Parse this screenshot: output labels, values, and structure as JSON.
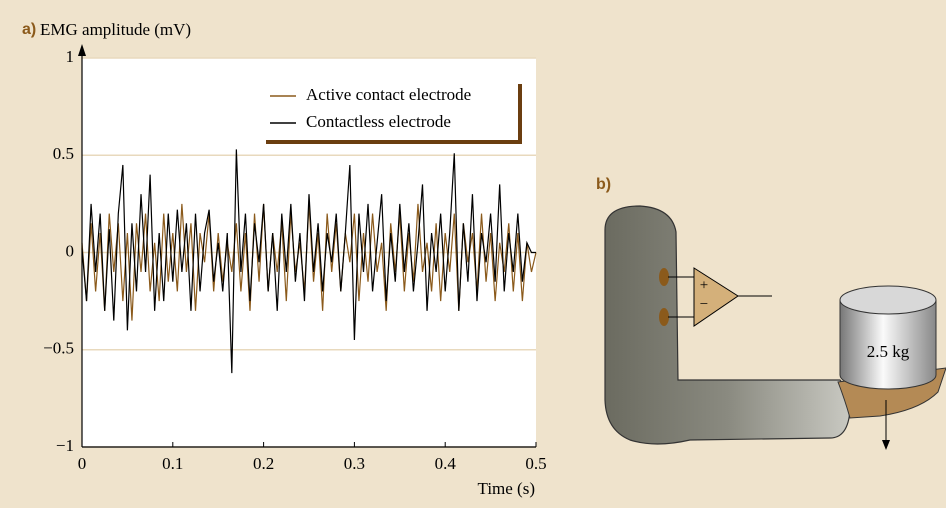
{
  "chart_data": {
    "type": "line",
    "panel_label": "a)",
    "ylabel": "EMG amplitude (mV)",
    "xlabel": "Time (s)",
    "x": [
      0,
      0.005,
      0.01,
      0.015,
      0.02,
      0.025,
      0.03,
      0.035,
      0.04,
      0.045,
      0.05,
      0.055,
      0.06,
      0.065,
      0.07,
      0.075,
      0.08,
      0.085,
      0.09,
      0.095,
      0.1,
      0.105,
      0.11,
      0.115,
      0.12,
      0.125,
      0.13,
      0.135,
      0.14,
      0.145,
      0.15,
      0.155,
      0.16,
      0.165,
      0.17,
      0.175,
      0.18,
      0.185,
      0.19,
      0.195,
      0.2,
      0.205,
      0.21,
      0.215,
      0.22,
      0.225,
      0.23,
      0.235,
      0.24,
      0.245,
      0.25,
      0.255,
      0.26,
      0.265,
      0.27,
      0.275,
      0.28,
      0.285,
      0.29,
      0.295,
      0.3,
      0.305,
      0.31,
      0.315,
      0.32,
      0.325,
      0.33,
      0.335,
      0.34,
      0.345,
      0.35,
      0.355,
      0.36,
      0.365,
      0.37,
      0.375,
      0.38,
      0.385,
      0.39,
      0.395,
      0.4,
      0.405,
      0.41,
      0.415,
      0.42,
      0.425,
      0.43,
      0.435,
      0.44,
      0.445,
      0.45,
      0.455,
      0.46,
      0.465,
      0.47,
      0.475,
      0.48,
      0.485,
      0.49,
      0.495,
      0.5
    ],
    "series": [
      {
        "name": "Active contact electrode",
        "color": "#8b5a1b",
        "values": [
          0.05,
          -0.25,
          0.15,
          -0.2,
          0.1,
          -0.3,
          0.2,
          -0.1,
          0.15,
          -0.25,
          0.1,
          -0.35,
          0.15,
          -0.1,
          0.2,
          -0.2,
          0.05,
          -0.25,
          0.2,
          -0.15,
          0.1,
          -0.2,
          0.25,
          -0.1,
          0.15,
          -0.3,
          0.1,
          -0.05,
          0.2,
          -0.2,
          0.1,
          -0.15,
          0.05,
          -0.1,
          0.15,
          -0.2,
          0.1,
          -0.3,
          0.2,
          -0.15,
          0.25,
          -0.2,
          0.1,
          -0.1,
          0.15,
          -0.25,
          0.2,
          -0.1,
          0.05,
          -0.2,
          0.25,
          -0.15,
          0.1,
          -0.3,
          0.2,
          -0.1,
          0.15,
          -0.2,
          0.1,
          -0.05,
          0.2,
          -0.25,
          0.1,
          -0.15,
          0.2,
          -0.1,
          0.05,
          -0.3,
          0.15,
          -0.1,
          0.2,
          -0.2,
          0.1,
          -0.15,
          0.25,
          -0.1,
          0.05,
          -0.2,
          0.15,
          -0.25,
          0.1,
          -0.1,
          0.2,
          -0.3,
          0.15,
          -0.05,
          0.1,
          -0.2,
          0.2,
          -0.15,
          0.1,
          -0.25,
          0.05,
          -0.1,
          0.15,
          -0.2,
          0.1,
          -0.25,
          0.05,
          -0.1,
          0.0
        ]
      },
      {
        "name": "Contactless electrode",
        "color": "#000000",
        "values": [
          0.02,
          -0.25,
          0.25,
          -0.1,
          0.2,
          -0.3,
          0.12,
          -0.35,
          0.2,
          0.45,
          -0.4,
          0.15,
          -0.2,
          0.3,
          -0.1,
          0.4,
          -0.3,
          0.1,
          -0.25,
          0.2,
          -0.15,
          0.22,
          -0.1,
          0.15,
          -0.3,
          0.2,
          -0.2,
          0.1,
          0.22,
          -0.15,
          0.05,
          -0.2,
          0.1,
          -0.62,
          0.53,
          -0.1,
          0.2,
          -0.25,
          0.15,
          -0.05,
          0.25,
          -0.2,
          0.1,
          -0.3,
          0.2,
          -0.1,
          0.25,
          -0.15,
          0.1,
          -0.25,
          0.3,
          -0.1,
          0.15,
          -0.2,
          0.1,
          -0.05,
          0.2,
          -0.2,
          0.1,
          0.45,
          -0.45,
          0.2,
          -0.1,
          0.25,
          -0.2,
          0.05,
          0.3,
          -0.25,
          0.1,
          -0.15,
          0.25,
          -0.1,
          0.15,
          -0.2,
          0.05,
          0.35,
          -0.3,
          0.1,
          -0.1,
          0.2,
          -0.2,
          0.1,
          0.51,
          -0.3,
          0.15,
          -0.15,
          0.3,
          -0.25,
          0.1,
          -0.05,
          0.2,
          -0.15,
          0.35,
          -0.2,
          0.1,
          -0.1,
          0.2,
          -0.15,
          0.05,
          0.0,
          0.0
        ]
      }
    ],
    "xlim": [
      0,
      0.5
    ],
    "ylim": [
      -1,
      1
    ],
    "xticks": [
      0,
      0.1,
      0.2,
      0.3,
      0.4,
      0.5
    ],
    "yticks": [
      {
        "value": -1,
        "label": "−1"
      },
      {
        "value": -0.5,
        "label": "−0.5"
      },
      0,
      0.5,
      1
    ],
    "grid": true
  },
  "diagram": {
    "panel_label": "b)",
    "plus": "+",
    "minus": "−",
    "weight": "2.5 kg"
  }
}
